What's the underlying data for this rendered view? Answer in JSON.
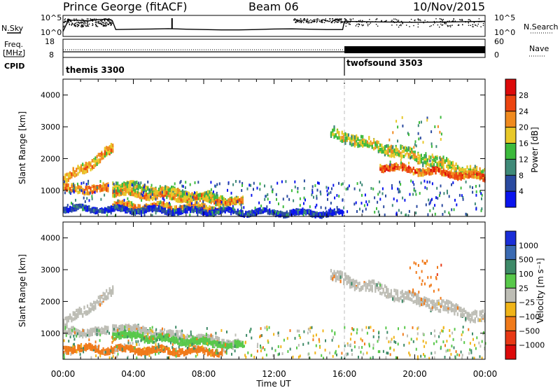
{
  "header": {
    "station": "Prince George (fitACF)",
    "beam": "Beam 06",
    "date": "10/Nov/2015"
  },
  "status_panels": {
    "left_labels": {
      "nsky": "N.Sky",
      "freq_line1": "Freq.",
      "freq_line2": "[MHz]",
      "cpid": "CPID"
    },
    "right_labels": {
      "nsearch": "N.Search",
      "nave": "Nave"
    },
    "noise_left_ticks": [
      "10^5",
      "10^0"
    ],
    "noise_right_ticks": [
      "10^5",
      "10^0"
    ],
    "freq_left_ticks": [
      "18",
      "8"
    ],
    "nave_right_ticks": [
      "60",
      "0"
    ],
    "cpid_segments": [
      {
        "name": "themis 3300",
        "start_hour": 0
      },
      {
        "name": "twofsound 3503",
        "start_hour": 16
      }
    ]
  },
  "chart_data": [
    {
      "type": "heatmap",
      "panel": "power",
      "xlabel": "",
      "ylabel": "Slant Range [km]",
      "xlim": [
        0,
        24
      ],
      "ylim": [
        180,
        4500
      ],
      "y_ticks": [
        1000,
        2000,
        3000,
        4000
      ],
      "colorbar": {
        "label": "Power [dB]",
        "ticks": [
          4,
          8,
          12,
          16,
          20,
          24,
          28
        ],
        "range": [
          0,
          32
        ]
      },
      "colors": [
        "#0a14ee",
        "#2a4aa0",
        "#3f8a78",
        "#3cba3c",
        "#e8c828",
        "#f08a1e",
        "#ec4410",
        "#dc0a0a"
      ],
      "bands": [
        {
          "x": [
            0.0,
            2.8
          ],
          "range_start": 1300,
          "range_end": 2300,
          "thickness": 280,
          "power": 22
        },
        {
          "x": [
            0.0,
            2.6
          ],
          "range_start": 1050,
          "range_end": 1050,
          "thickness": 220,
          "power": 24
        },
        {
          "x": [
            2.8,
            10.2
          ],
          "range_start": 1200,
          "range_end": 650,
          "thickness": 200,
          "power": 18
        },
        {
          "x": [
            2.8,
            10.2
          ],
          "range_start": 950,
          "range_end": 600,
          "thickness": 180,
          "power": 22
        },
        {
          "x": [
            2.8,
            9.0
          ],
          "range_start": 520,
          "range_end": 420,
          "thickness": 180,
          "power": 22
        },
        {
          "x": [
            0.0,
            15.9
          ],
          "range_start": 420,
          "range_end": 260,
          "thickness": 140,
          "power": 6
        },
        {
          "x": [
            15.2,
            24.0
          ],
          "range_start": 2800,
          "range_end": 1450,
          "thickness": 330,
          "power": 18
        },
        {
          "x": [
            18.0,
            24.0
          ],
          "range_start": 1750,
          "range_end": 1400,
          "thickness": 180,
          "power": 26
        }
      ],
      "scatter": [
        {
          "x": [
            18.5,
            21.5
          ],
          "range": [
            1600,
            3300
          ],
          "power": 14
        },
        {
          "x": [
            0.0,
            24.0
          ],
          "range": [
            200,
            1300
          ],
          "power": 8
        }
      ]
    },
    {
      "type": "heatmap",
      "panel": "velocity",
      "xlabel": "Time UT",
      "ylabel": "Slant Range [km]",
      "xlim": [
        0,
        24
      ],
      "ylim": [
        180,
        4500
      ],
      "y_ticks": [
        1000,
        2000,
        3000,
        4000
      ],
      "x_ticks": [
        "00:00",
        "04:00",
        "08:00",
        "12:00",
        "16:00",
        "20:00",
        "00:00"
      ],
      "colorbar": {
        "label": "Velocity [m s⁻¹]",
        "ticks": [
          "1000",
          "500",
          "100",
          "25",
          "−25",
          "−100",
          "−500",
          "−1000"
        ]
      },
      "colors": [
        "#1a2ed8",
        "#3a6ab2",
        "#3e8a68",
        "#58c84a",
        "#bdbdb5",
        "#f0b418",
        "#f07a1a",
        "#e83814",
        "#dc0a0a"
      ],
      "bands": [
        {
          "x": [
            0.0,
            2.8
          ],
          "range_start": 1300,
          "range_end": 2300,
          "thickness": 280,
          "velocity": 0
        },
        {
          "x": [
            0.0,
            2.6
          ],
          "range_start": 1050,
          "range_end": 1050,
          "thickness": 220,
          "velocity": 0
        },
        {
          "x": [
            2.8,
            10.2
          ],
          "range_start": 1200,
          "range_end": 650,
          "thickness": 200,
          "velocity": 0
        },
        {
          "x": [
            2.8,
            10.2
          ],
          "range_start": 950,
          "range_end": 600,
          "thickness": 180,
          "velocity": 60
        },
        {
          "x": [
            0.0,
            9.0
          ],
          "range_start": 520,
          "range_end": 420,
          "thickness": 180,
          "velocity": -150
        },
        {
          "x": [
            15.2,
            24.0
          ],
          "range_start": 2800,
          "range_end": 1450,
          "thickness": 330,
          "velocity": 0
        }
      ],
      "scatter": [
        {
          "x": [
            19.5,
            21.5
          ],
          "range": [
            1800,
            3300
          ],
          "velocity": -400
        },
        {
          "x": [
            0.0,
            24.0
          ],
          "range": [
            200,
            1200
          ],
          "velocity": 30
        }
      ]
    }
  ],
  "noise_series": {
    "x_hours": [
      0,
      0.3,
      0.7,
      1.0,
      1.5,
      2.0,
      2.5,
      2.8,
      3.0,
      4.0,
      5.0,
      6.0,
      7.0,
      8.0,
      9.0,
      10.0,
      11.0,
      12.0,
      13.0,
      14.0,
      15.0,
      15.9,
      16.0,
      18.0,
      20.0,
      22.0,
      24.0
    ],
    "level": [
      0.2,
      0.8,
      0.82,
      0.8,
      0.78,
      0.85,
      0.86,
      0.8,
      0.3,
      0.32,
      0.33,
      0.35,
      0.32,
      0.3,
      0.28,
      0.28,
      0.3,
      0.33,
      0.34,
      0.32,
      0.3,
      0.3,
      0.75,
      0.72,
      0.7,
      0.72,
      0.75
    ],
    "spike_hour": 6.2
  }
}
